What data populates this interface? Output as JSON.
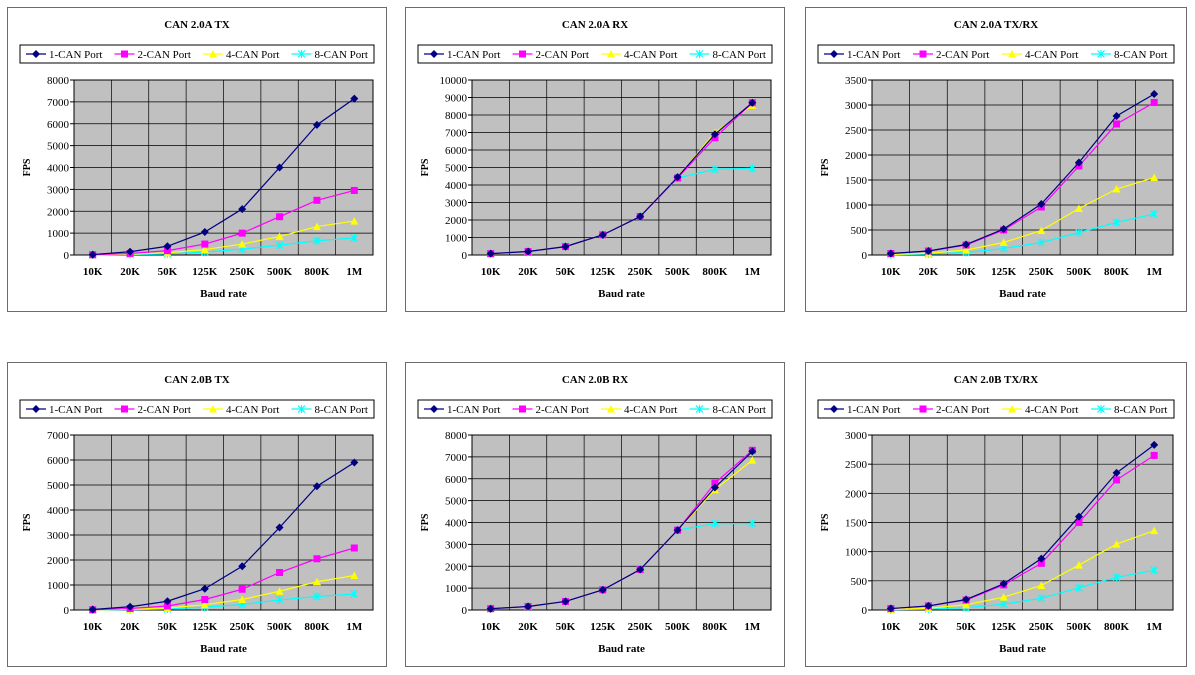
{
  "colors": {
    "plot_bg": "#c0c0c0",
    "grid": "#000000",
    "series": [
      "#000080",
      "#ff00ff",
      "#ffff00",
      "#00ffff"
    ]
  },
  "chart_data": [
    {
      "type": "line",
      "title": "CAN 2.0A TX",
      "xlabel": "Baud rate",
      "ylabel": "FPS",
      "categories": [
        "10K",
        "20K",
        "50K",
        "125K",
        "250K",
        "500K",
        "800K",
        "1M"
      ],
      "ylim": [
        0,
        8000
      ],
      "ytick_step": 1000,
      "grid": true,
      "legend": "top",
      "series": [
        {
          "name": "1-CAN Port",
          "marker": "diamond",
          "values": [
            20,
            150,
            400,
            1050,
            2100,
            4000,
            5950,
            7150
          ]
        },
        {
          "name": "2-CAN Port",
          "marker": "square",
          "values": [
            10,
            70,
            200,
            500,
            1000,
            1750,
            2500,
            2950
          ]
        },
        {
          "name": "4-CAN Port",
          "marker": "triangle",
          "values": [
            5,
            40,
            100,
            250,
            500,
            850,
            1300,
            1550
          ]
        },
        {
          "name": "8-CAN Port",
          "marker": "star",
          "values": [
            3,
            20,
            50,
            130,
            270,
            450,
            650,
            780
          ]
        }
      ]
    },
    {
      "type": "line",
      "title": "CAN 2.0A RX",
      "xlabel": "Baud rate",
      "ylabel": "FPS",
      "categories": [
        "10K",
        "20K",
        "50K",
        "125K",
        "250K",
        "500K",
        "800K",
        "1M"
      ],
      "ylim": [
        0,
        10000
      ],
      "ytick_step": 1000,
      "grid": true,
      "legend": "top",
      "series": [
        {
          "name": "1-CAN Port",
          "marker": "diamond",
          "values": [
            80,
            200,
            480,
            1150,
            2200,
            4450,
            6900,
            8700
          ]
        },
        {
          "name": "2-CAN Port",
          "marker": "square",
          "values": [
            80,
            200,
            480,
            1150,
            2200,
            4400,
            6700,
            8700
          ]
        },
        {
          "name": "4-CAN Port",
          "marker": "triangle",
          "values": [
            80,
            200,
            480,
            1150,
            2200,
            4450,
            7000,
            8550
          ]
        },
        {
          "name": "8-CAN Port",
          "marker": "star",
          "values": [
            80,
            200,
            480,
            1150,
            2200,
            4400,
            4900,
            4950
          ]
        }
      ]
    },
    {
      "type": "line",
      "title": "CAN 2.0A TX/RX",
      "xlabel": "Baud rate",
      "ylabel": "FPS",
      "categories": [
        "10K",
        "20K",
        "50K",
        "125K",
        "250K",
        "500K",
        "800K",
        "1M"
      ],
      "ylim": [
        0,
        3500
      ],
      "ytick_step": 500,
      "grid": true,
      "legend": "top",
      "series": [
        {
          "name": "1-CAN Port",
          "marker": "diamond",
          "values": [
            30,
            80,
            210,
            520,
            1020,
            1850,
            2780,
            3220
          ]
        },
        {
          "name": "2-CAN Port",
          "marker": "square",
          "values": [
            30,
            80,
            200,
            500,
            960,
            1780,
            2620,
            3050
          ]
        },
        {
          "name": "4-CAN Port",
          "marker": "triangle",
          "values": [
            10,
            35,
            100,
            250,
            490,
            930,
            1320,
            1550
          ]
        },
        {
          "name": "8-CAN Port",
          "marker": "star",
          "values": [
            5,
            20,
            50,
            130,
            250,
            450,
            650,
            820
          ]
        }
      ]
    },
    {
      "type": "line",
      "title": "CAN 2.0B TX",
      "xlabel": "Baud rate",
      "ylabel": "FPS",
      "categories": [
        "10K",
        "20K",
        "50K",
        "125K",
        "250K",
        "500K",
        "800K",
        "1M"
      ],
      "ylim": [
        0,
        7000
      ],
      "ytick_step": 1000,
      "grid": true,
      "legend": "top",
      "series": [
        {
          "name": "1-CAN Port",
          "marker": "diamond",
          "values": [
            20,
            130,
            350,
            850,
            1750,
            3300,
            4950,
            5900
          ]
        },
        {
          "name": "2-CAN Port",
          "marker": "square",
          "values": [
            10,
            60,
            160,
            420,
            830,
            1500,
            2050,
            2480
          ]
        },
        {
          "name": "4-CAN Port",
          "marker": "triangle",
          "values": [
            5,
            30,
            80,
            210,
            420,
            750,
            1130,
            1380
          ]
        },
        {
          "name": "8-CAN Port",
          "marker": "star",
          "values": [
            3,
            15,
            40,
            110,
            220,
            400,
            540,
            640
          ]
        }
      ]
    },
    {
      "type": "line",
      "title": "CAN 2.0B RX",
      "xlabel": "Baud rate",
      "ylabel": "FPS",
      "categories": [
        "10K",
        "20K",
        "50K",
        "125K",
        "250K",
        "500K",
        "800K",
        "1M"
      ],
      "ylim": [
        0,
        8000
      ],
      "ytick_step": 1000,
      "grid": true,
      "legend": "top",
      "series": [
        {
          "name": "1-CAN Port",
          "marker": "diamond",
          "values": [
            60,
            160,
            390,
            920,
            1850,
            3650,
            5600,
            7250
          ]
        },
        {
          "name": "2-CAN Port",
          "marker": "square",
          "values": [
            60,
            160,
            390,
            920,
            1850,
            3650,
            5800,
            7300
          ]
        },
        {
          "name": "4-CAN Port",
          "marker": "triangle",
          "values": [
            60,
            160,
            390,
            920,
            1850,
            3650,
            5500,
            6850
          ]
        },
        {
          "name": "8-CAN Port",
          "marker": "star",
          "values": [
            60,
            160,
            390,
            920,
            1850,
            3650,
            3950,
            3950
          ]
        }
      ]
    },
    {
      "type": "line",
      "title": "CAN 2.0B TX/RX",
      "xlabel": "Baud rate",
      "ylabel": "FPS",
      "categories": [
        "10K",
        "20K",
        "50K",
        "125K",
        "250K",
        "500K",
        "800K",
        "1M"
      ],
      "ylim": [
        0,
        3000
      ],
      "ytick_step": 500,
      "grid": true,
      "legend": "top",
      "series": [
        {
          "name": "1-CAN Port",
          "marker": "diamond",
          "values": [
            25,
            70,
            180,
            450,
            880,
            1600,
            2350,
            2830
          ]
        },
        {
          "name": "2-CAN Port",
          "marker": "square",
          "values": [
            25,
            70,
            170,
            430,
            800,
            1500,
            2230,
            2650
          ]
        },
        {
          "name": "4-CAN Port",
          "marker": "triangle",
          "values": [
            10,
            30,
            90,
            220,
            420,
            770,
            1130,
            1360
          ]
        },
        {
          "name": "8-CAN Port",
          "marker": "star",
          "values": [
            5,
            15,
            40,
            100,
            200,
            380,
            560,
            680
          ]
        }
      ]
    }
  ]
}
